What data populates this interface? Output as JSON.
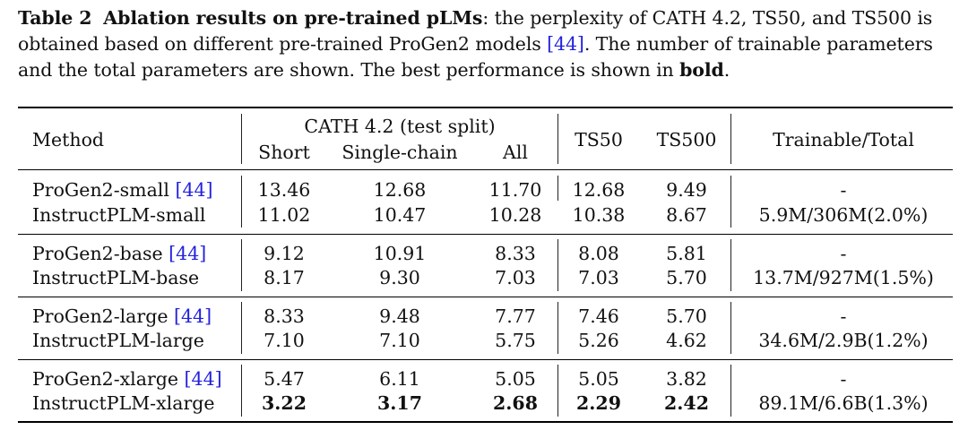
{
  "caption": {
    "label": "Table 2",
    "title": "Ablation results on pre-trained pLMs",
    "text_1": ": the perplexity of CATH 4.2, TS50, and TS500 is obtained based on different pre-trained ProGen2 models ",
    "cite": "[44]",
    "text_2": ". The number of trainable parameters and the total parameters are shown. The best performance is shown in ",
    "bold_word": "bold",
    "text_3": "."
  },
  "header": {
    "method": "Method",
    "cath_group": "CATH 4.2 (test split)",
    "short": "Short",
    "single_chain": "Single-chain",
    "all": "All",
    "ts50": "TS50",
    "ts500": "TS500",
    "trainable_total": "Trainable/Total"
  },
  "rows": [
    {
      "name": "ProGen2-small",
      "cite": "[44]",
      "short": "13.46",
      "single": "12.68",
      "all": "11.70",
      "ts50": "12.68",
      "ts500": "9.49",
      "params": "-"
    },
    {
      "name": "InstructPLM-small",
      "cite": "",
      "short": "11.02",
      "single": "10.47",
      "all": "10.28",
      "ts50": "10.38",
      "ts500": "8.67",
      "params": "5.9M/306M(2.0%)"
    },
    {
      "name": "ProGen2-base",
      "cite": "[44]",
      "short": "9.12",
      "single": "10.91",
      "all": "8.33",
      "ts50": "8.08",
      "ts500": "5.81",
      "params": "-"
    },
    {
      "name": "InstructPLM-base",
      "cite": "",
      "short": "8.17",
      "single": "9.30",
      "all": "7.03",
      "ts50": "7.03",
      "ts500": "5.70",
      "params": "13.7M/927M(1.5%)"
    },
    {
      "name": "ProGen2-large",
      "cite": "[44]",
      "short": "8.33",
      "single": "9.48",
      "all": "7.77",
      "ts50": "7.46",
      "ts500": "5.70",
      "params": "-"
    },
    {
      "name": "InstructPLM-large",
      "cite": "",
      "short": "7.10",
      "single": "7.10",
      "all": "5.75",
      "ts50": "5.26",
      "ts500": "4.62",
      "params": "34.6M/2.9B(1.2%)"
    },
    {
      "name": "ProGen2-xlarge",
      "cite": "[44]",
      "short": "5.47",
      "single": "6.11",
      "all": "5.05",
      "ts50": "5.05",
      "ts500": "3.82",
      "params": "-"
    },
    {
      "name": "InstructPLM-xlarge",
      "cite": "",
      "short": "3.22",
      "single": "3.17",
      "all": "2.68",
      "ts50": "2.29",
      "ts500": "2.42",
      "params": "89.1M/6.6B(1.3%)"
    }
  ]
}
